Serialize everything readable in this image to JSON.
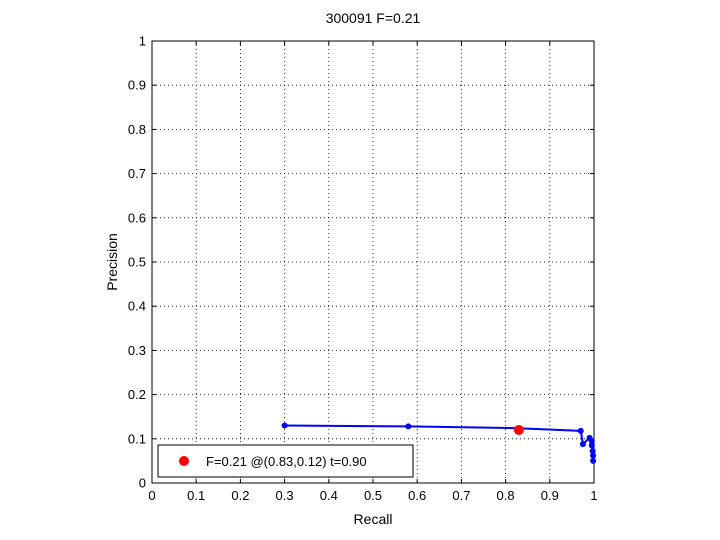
{
  "chart_data": {
    "type": "line",
    "title": "300091 F=0.21",
    "xlabel": "Recall",
    "ylabel": "Precision",
    "xlim": [
      0,
      1
    ],
    "ylim": [
      0,
      1
    ],
    "grid": true,
    "x_ticks": [
      "0",
      "0.1",
      "0.2",
      "0.3",
      "0.4",
      "0.5",
      "0.6",
      "0.7",
      "0.8",
      "0.9",
      "1"
    ],
    "y_ticks": [
      "0",
      "0.1",
      "0.2",
      "0.3",
      "0.4",
      "0.5",
      "0.6",
      "0.7",
      "0.8",
      "0.9",
      "1"
    ],
    "series": [
      {
        "color": "#0000ff",
        "marker": "dot",
        "x": [
          0.3,
          0.58,
          0.83,
          0.97,
          0.975,
          0.99,
          0.995,
          0.995,
          0.997,
          0.998,
          0.998
        ],
        "y": [
          0.13,
          0.128,
          0.124,
          0.118,
          0.088,
          0.102,
          0.095,
          0.085,
          0.072,
          0.062,
          0.05
        ]
      }
    ],
    "highlight_point": {
      "x": 0.83,
      "y": 0.12,
      "color": "#ff0000"
    },
    "legend": {
      "position": "bottom-left",
      "entries": [
        "F=0.21 @(0.83,0.12) t=0.90"
      ]
    }
  }
}
